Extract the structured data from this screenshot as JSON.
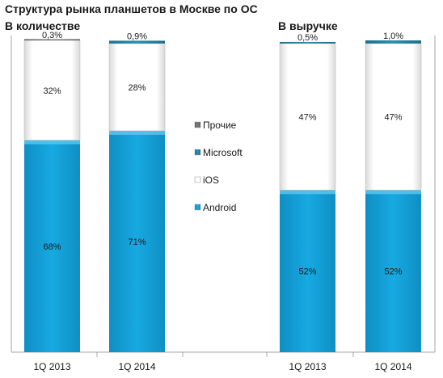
{
  "title": "Структура рынка планшетов в Москве по ОС",
  "chart_data": [
    {
      "type": "bar",
      "stacked": true,
      "subtitle": "В количестве",
      "categories": [
        "1Q 2013",
        "1Q 2014"
      ],
      "ylim": [
        0,
        100
      ],
      "series": [
        {
          "name": "Android",
          "values": [
            68,
            71
          ],
          "labels": [
            "68%",
            "71%"
          ]
        },
        {
          "name": "iOS",
          "values": [
            32,
            28
          ],
          "labels": [
            "32%",
            "28%"
          ]
        },
        {
          "name": "Microsoft",
          "values": [
            0,
            0.9
          ],
          "labels": [
            "",
            "0,9%"
          ]
        },
        {
          "name": "Прочие",
          "values": [
            0.3,
            0
          ],
          "labels": [
            "0,3%",
            ""
          ]
        }
      ]
    },
    {
      "type": "bar",
      "stacked": true,
      "subtitle": "В выручке",
      "categories": [
        "1Q 2013",
        "1Q 2014"
      ],
      "ylim": [
        0,
        100
      ],
      "series": [
        {
          "name": "Android",
          "values": [
            52,
            52
          ],
          "labels": [
            "52%",
            "52%"
          ]
        },
        {
          "name": "iOS",
          "values": [
            47,
            47
          ],
          "labels": [
            "47%",
            "47%"
          ]
        },
        {
          "name": "Microsoft",
          "values": [
            0.5,
            1.0
          ],
          "labels": [
            "0,5%",
            "1,0%"
          ]
        },
        {
          "name": "Прочие",
          "values": [
            0,
            0
          ],
          "labels": [
            "",
            ""
          ]
        }
      ]
    }
  ],
  "legend": {
    "placement": "center",
    "items": [
      "Прочие",
      "Microsoft",
      "iOS",
      "Android"
    ]
  },
  "colors": {
    "Android": "#17a9e1",
    "iOS": "#ffffff",
    "Microsoft": "#2b8fb0",
    "Прочие": "#7f7f7f",
    "axis": "#a6a6a6"
  }
}
